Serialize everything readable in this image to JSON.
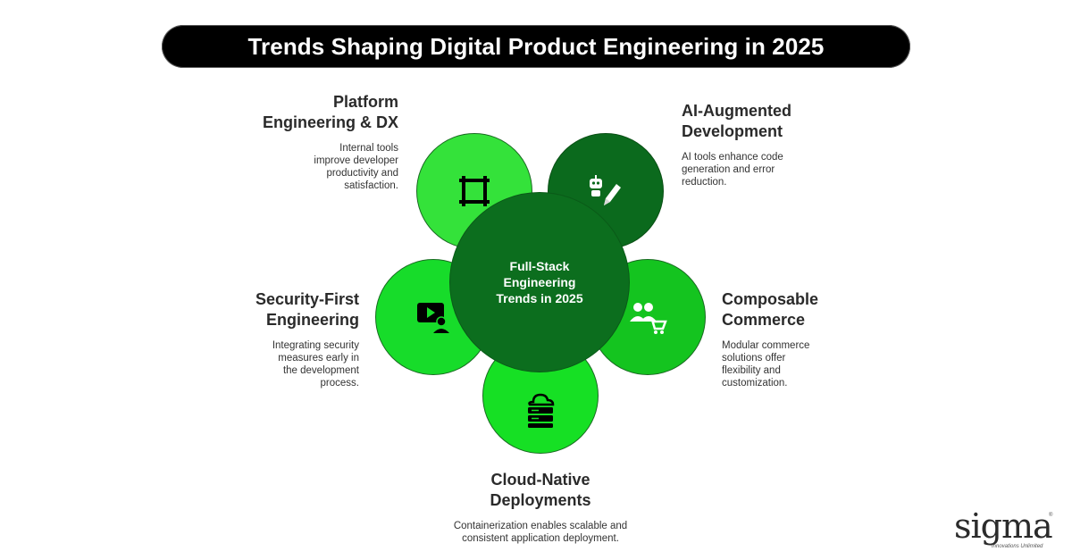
{
  "title": "Trends Shaping Digital Product Engineering in 2025",
  "center": {
    "label": "Full-Stack Engineering Trends in 2025"
  },
  "trends": [
    {
      "id": "platform",
      "title": "Platform Engineering & DX",
      "description": "Internal tools improve developer productivity and satisfaction.",
      "icon": "frame-icon",
      "color": "#34e23a"
    },
    {
      "id": "ai",
      "title": "AI-Augmented Development",
      "description": "AI tools enhance code generation and error reduction.",
      "icon": "robot-pencil-icon",
      "color": "#0b6a1d"
    },
    {
      "id": "security",
      "title": "Security-First Engineering",
      "description": "Integrating security measures early in the development process.",
      "icon": "video-user-icon",
      "color": "#17dc2a"
    },
    {
      "id": "composable",
      "title": "Composable Commerce",
      "description": "Modular commerce solutions offer flexibility and customization.",
      "icon": "users-cart-icon",
      "color": "#14c41f"
    },
    {
      "id": "cloud",
      "title": "Cloud-Native Deployments",
      "description": "Containerization enables scalable and consistent application deployment.",
      "icon": "cloud-server-icon",
      "color": "#16e024"
    }
  ],
  "logo": {
    "text": "sigma",
    "tagline": "Innovations Unlimited"
  }
}
